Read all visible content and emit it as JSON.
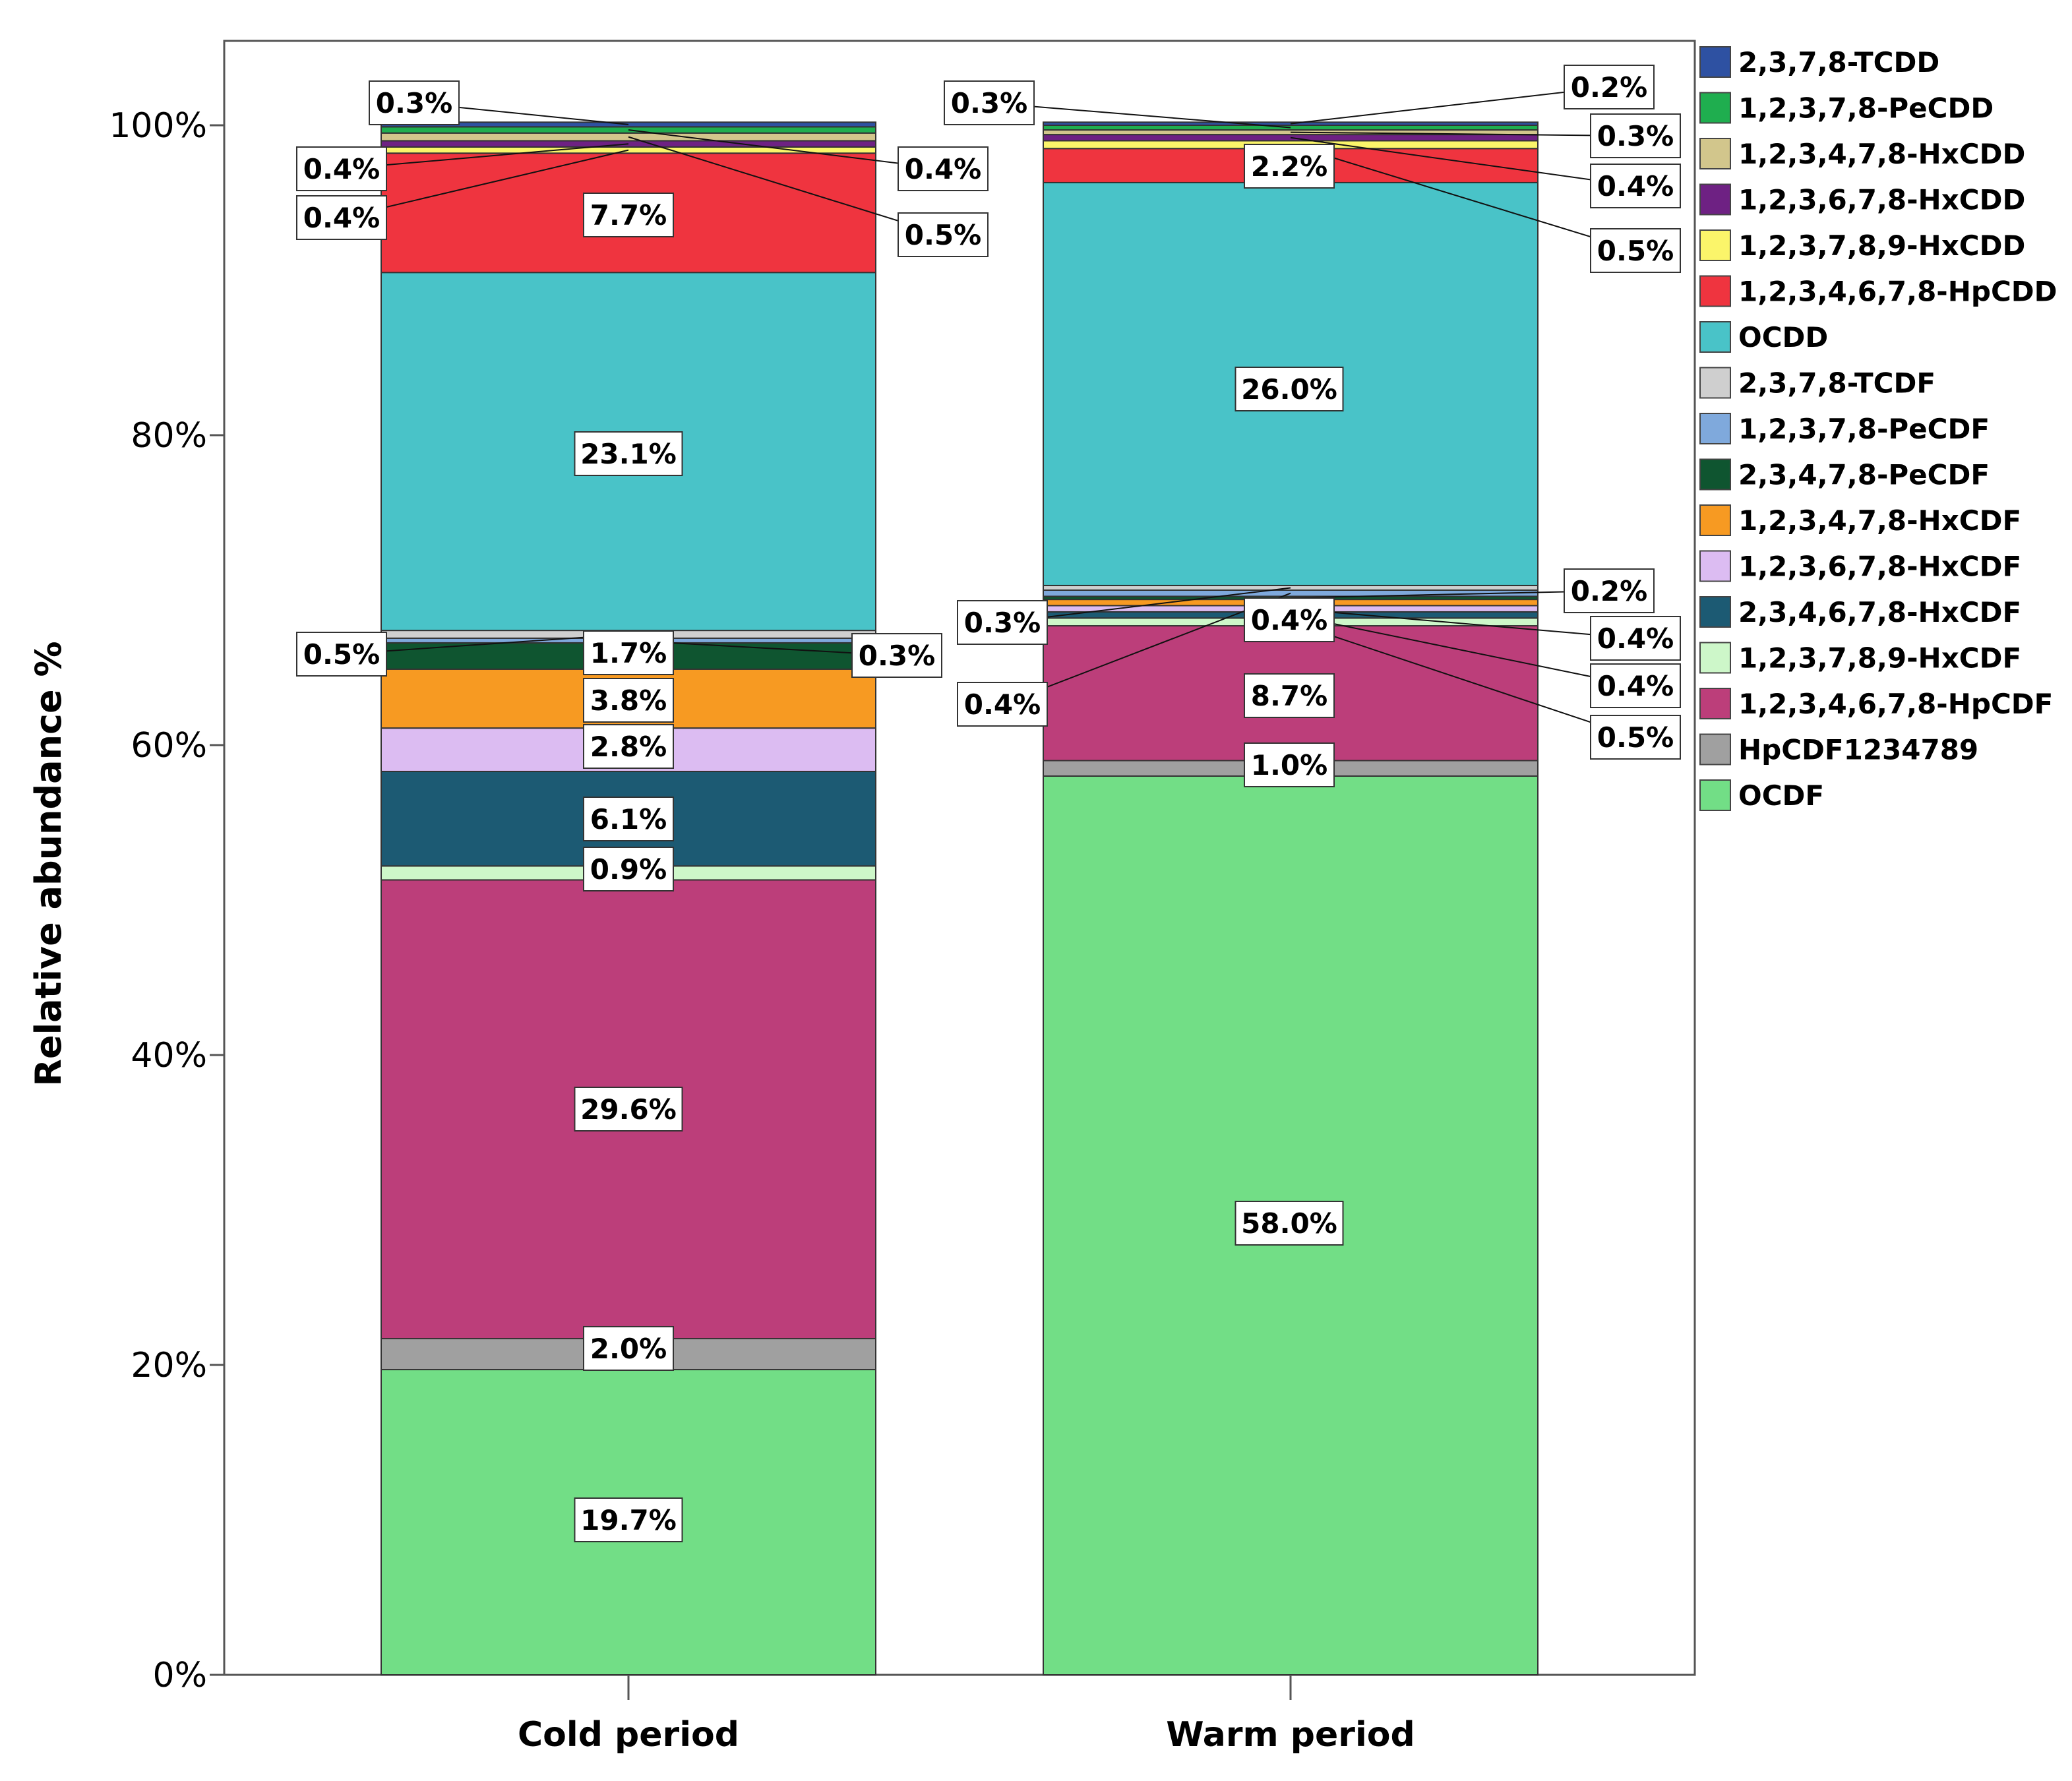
{
  "chart_data": {
    "type": "bar",
    "stacked": true,
    "ylabel": "Relative abundance %",
    "xlabel": "",
    "ylim": [
      0,
      100
    ],
    "yticks": [
      "0%",
      "20%",
      "40%",
      "60%",
      "80%",
      "100%"
    ],
    "ytick_values": [
      0,
      20,
      40,
      60,
      80,
      100
    ],
    "categories": [
      "Cold period",
      "Warm period"
    ],
    "legend_position": "right",
    "series": [
      {
        "name": "OCDF",
        "color": "#72de86",
        "values": [
          19.7,
          58.0
        ],
        "labels": [
          "19.7%",
          "58.0%"
        ]
      },
      {
        "name": "HpCDF1234789",
        "color": "#a0a0a0",
        "values": [
          2.0,
          1.0
        ],
        "labels": [
          "2.0%",
          "1.0%"
        ]
      },
      {
        "name": "1,2,3,4,6,7,8-HpCDF",
        "color": "#bc3e7a",
        "values": [
          29.6,
          8.7
        ],
        "labels": [
          "29.6%",
          "8.7%"
        ]
      },
      {
        "name": "1,2,3,7,8,9-HxCDF",
        "color": "#cdf7c9",
        "values": [
          0.9,
          0.5
        ],
        "labels": [
          "0.9%",
          "0.5%"
        ]
      },
      {
        "name": "2,3,4,6,7,8-HxCDF",
        "color": "#1c5a73",
        "values": [
          6.1,
          0.4
        ],
        "labels": [
          "6.1%",
          "0.4%"
        ]
      },
      {
        "name": "1,2,3,6,7,8-HxCDF",
        "color": "#dcbcf2",
        "values": [
          2.8,
          0.4
        ],
        "labels": [
          "2.8%",
          "0.4%"
        ]
      },
      {
        "name": "1,2,3,4,7,8-HxCDF",
        "color": "#f79a22",
        "values": [
          3.8,
          0.4
        ],
        "labels": [
          "3.8%",
          "0.4%"
        ]
      },
      {
        "name": "2,3,4,7,8-PeCDF",
        "color": "#0f5530",
        "values": [
          1.7,
          0.2
        ],
        "labels": [
          "1.7%",
          "0.2%"
        ]
      },
      {
        "name": "1,2,3,7,8-PeCDF",
        "color": "#7fa9dc",
        "values": [
          0.3,
          0.4
        ],
        "labels": [
          "0.3%",
          "0.4%"
        ]
      },
      {
        "name": "2,3,7,8-TCDF",
        "color": "#cfcfcf",
        "values": [
          0.5,
          0.3
        ],
        "labels": [
          "0.5%",
          "0.3%"
        ]
      },
      {
        "name": "OCDD",
        "color": "#49c3c8",
        "values": [
          23.1,
          26.0
        ],
        "labels": [
          "23.1%",
          "26.0%"
        ]
      },
      {
        "name": "1,2,3,4,6,7,8-HpCDD",
        "color": "#ef343f",
        "values": [
          7.7,
          2.2
        ],
        "labels": [
          "7.7%",
          "2.2%"
        ]
      },
      {
        "name": "1,2,3,7,8,9-HxCDD",
        "color": "#fbf56a",
        "values": [
          0.4,
          0.5
        ],
        "labels": [
          "0.4%",
          "0.5%"
        ]
      },
      {
        "name": "1,2,3,6,7,8-HxCDD",
        "color": "#6e2183",
        "values": [
          0.4,
          0.4
        ],
        "labels": [
          "0.4%",
          "0.4%"
        ]
      },
      {
        "name": "1,2,3,4,7,8-HxCDD",
        "color": "#d2c68c",
        "values": [
          0.5,
          0.3
        ],
        "labels": [
          "0.5%",
          "0.3%"
        ]
      },
      {
        "name": "1,2,3,7,8-PeCDD",
        "color": "#1fae4f",
        "values": [
          0.4,
          0.3
        ],
        "labels": [
          "0.4%",
          "0.3%"
        ]
      },
      {
        "name": "2,3,7,8-TCDD",
        "color": "#2e51a2",
        "values": [
          0.3,
          0.2
        ],
        "labels": [
          "0.3%",
          "0.2%"
        ]
      }
    ],
    "legend_order": [
      "2,3,7,8-TCDD",
      "1,2,3,7,8-PeCDD",
      "1,2,3,4,7,8-HxCDD",
      "1,2,3,6,7,8-HxCDD",
      "1,2,3,7,8,9-HxCDD",
      "1,2,3,4,6,7,8-HpCDD",
      "OCDD",
      "2,3,7,8-TCDF",
      "1,2,3,7,8-PeCDF",
      "2,3,4,7,8-PeCDF",
      "1,2,3,4,7,8-HxCDF",
      "1,2,3,6,7,8-HxCDF",
      "2,3,4,6,7,8-HxCDF",
      "1,2,3,7,8,9-HxCDF",
      "1,2,3,4,6,7,8-HpCDF",
      "HpCDF1234789",
      "OCDF"
    ]
  }
}
